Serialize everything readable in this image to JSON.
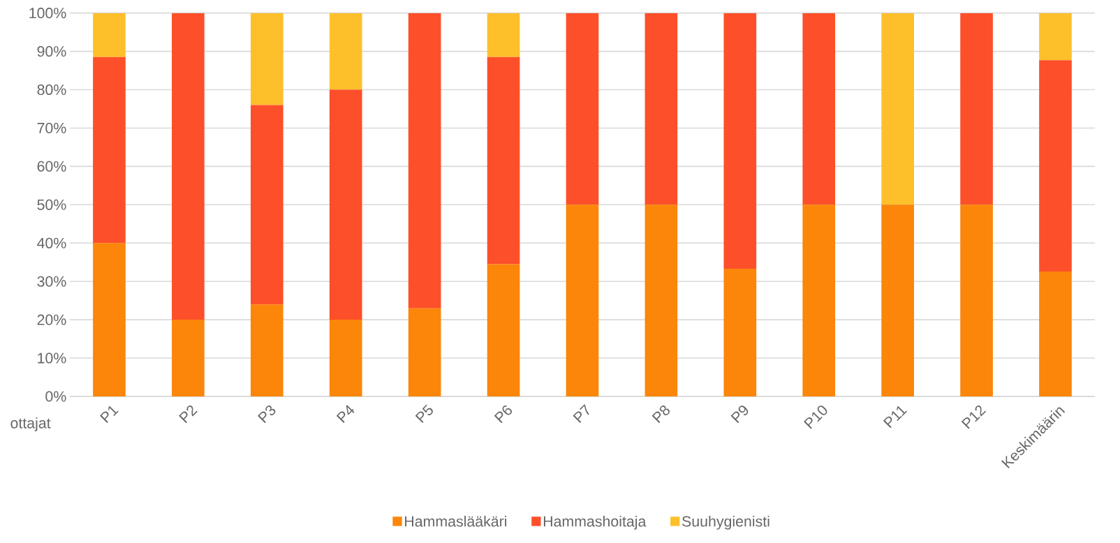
{
  "chart_data": {
    "type": "bar",
    "stacked": true,
    "xlabel": "ottajat",
    "categories": [
      "P1",
      "P2",
      "P3",
      "P4",
      "P5",
      "P6",
      "P7",
      "P8",
      "P9",
      "P10",
      "P11",
      "P12",
      "Keskimäärin"
    ],
    "series": [
      {
        "name": "Hammaslääkäri",
        "color": "#fb8609",
        "values": [
          40,
          20,
          24,
          20,
          23,
          34.5,
          50,
          50,
          33.3,
          50,
          50,
          50,
          32.6
        ]
      },
      {
        "name": "Hammashoitaja",
        "color": "#fd4f29",
        "values": [
          48.5,
          80,
          52,
          60,
          77,
          54,
          50,
          50,
          66.7,
          50,
          0,
          50,
          55.1
        ]
      },
      {
        "name": "Suuhygienisti",
        "color": "#fec02a",
        "values": [
          11.5,
          0,
          24,
          20,
          0,
          11.5,
          0,
          0,
          0,
          0,
          50,
          0,
          12.3
        ]
      }
    ],
    "ylim": [
      0,
      100
    ],
    "yticks": [
      {
        "value": 0,
        "label": "0%"
      },
      {
        "value": 10,
        "label": "10%"
      },
      {
        "value": 20,
        "label": "20%"
      },
      {
        "value": 30,
        "label": "30%"
      },
      {
        "value": 40,
        "label": "40%"
      },
      {
        "value": 50,
        "label": "50%"
      },
      {
        "value": 60,
        "label": "60%"
      },
      {
        "value": 70,
        "label": "70%"
      },
      {
        "value": 80,
        "label": "80%"
      },
      {
        "value": 90,
        "label": "90%"
      },
      {
        "value": 100,
        "label": "100%"
      }
    ],
    "grid": "y",
    "legend": "bottom"
  }
}
